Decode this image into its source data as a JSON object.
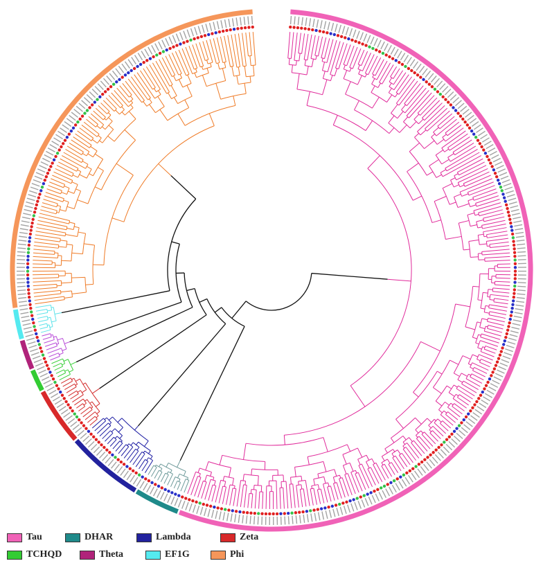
{
  "legend": [
    {
      "key": "tau",
      "label": "Tau",
      "color": "#f062b7"
    },
    {
      "key": "dhar",
      "label": "DHAR",
      "color": "#1f8a8a"
    },
    {
      "key": "lambda",
      "label": "Lambda",
      "color": "#22229e"
    },
    {
      "key": "zeta",
      "label": "Zeta",
      "color": "#d8292a"
    },
    {
      "key": "tchqd",
      "label": "TCHQD",
      "color": "#33cc33"
    },
    {
      "key": "theta",
      "label": "Theta",
      "color": "#b0237a"
    },
    {
      "key": "ef1g",
      "label": "EF1G",
      "color": "#55eaf0"
    },
    {
      "key": "phi",
      "label": "Phi",
      "color": "#f5965a"
    }
  ],
  "tree": {
    "clades": [
      {
        "key": "tau",
        "leaves": 225,
        "branch_color": "#e0299a"
      },
      {
        "key": "dhar",
        "leaves": 12,
        "branch_color": "#6e9a9a"
      },
      {
        "key": "lambda",
        "leaves": 20,
        "branch_color": "#1e1ea3"
      },
      {
        "key": "zeta",
        "leaves": 15,
        "branch_color": "#d32c2c"
      },
      {
        "key": "tchqd",
        "leaves": 6,
        "branch_color": "#3acf3a"
      },
      {
        "key": "theta",
        "leaves": 8,
        "branch_color": "#b84bd8"
      },
      {
        "key": "ef1g",
        "leaves": 8,
        "branch_color": "#5ee3ea"
      },
      {
        "key": "phi",
        "leaves": 108,
        "branch_color": "#ef7a25"
      }
    ],
    "backbone_color": "#111111",
    "species_marker_colors": [
      "#e02020",
      "#2830c8",
      "#35c24a"
    ]
  }
}
